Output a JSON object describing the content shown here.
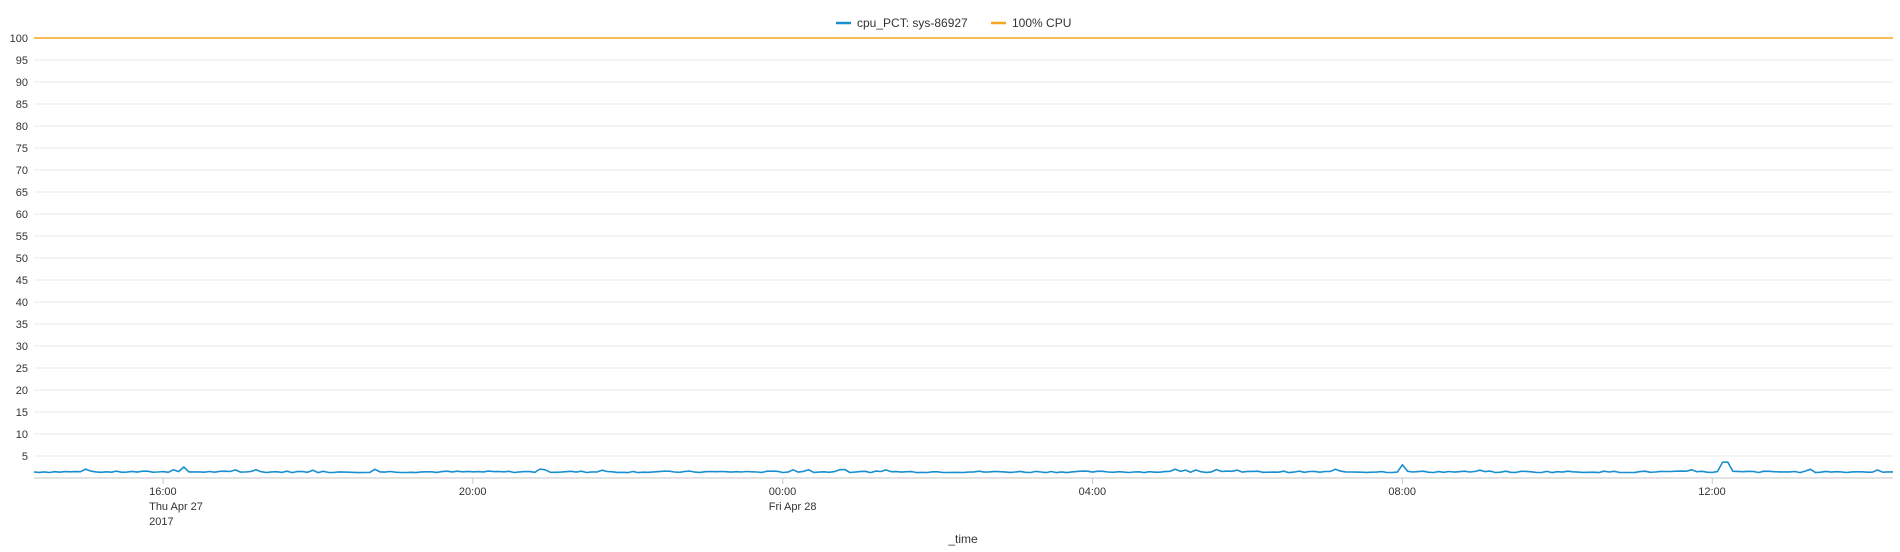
{
  "chart_data": {
    "type": "line",
    "title": "",
    "xlabel": "_time",
    "ylabel": "",
    "ylim": [
      0,
      100
    ],
    "y_ticks": [
      5,
      10,
      15,
      20,
      25,
      30,
      35,
      40,
      45,
      50,
      55,
      60,
      65,
      70,
      75,
      80,
      85,
      90,
      95,
      100
    ],
    "x_range": [
      "2017-04-27T14:20",
      "2017-04-28T14:20"
    ],
    "x_ticks": [
      {
        "time": "2017-04-27T16:00",
        "lines": [
          "16:00",
          "Thu Apr 27",
          "2017"
        ]
      },
      {
        "time": "2017-04-27T20:00",
        "lines": [
          "20:00"
        ]
      },
      {
        "time": "2017-04-28T00:00",
        "lines": [
          "00:00",
          "Fri Apr 28"
        ]
      },
      {
        "time": "2017-04-28T04:00",
        "lines": [
          "04:00"
        ]
      },
      {
        "time": "2017-04-28T08:00",
        "lines": [
          "08:00"
        ]
      },
      {
        "time": "2017-04-28T12:00",
        "lines": [
          "12:00"
        ]
      }
    ],
    "grid": true,
    "legend_position": "top",
    "series": [
      {
        "name": "cpu_PCT: sys-86927",
        "color": "#1a8fd0",
        "baseline": 1.4,
        "spikes": [
          {
            "time": "2017-04-27T16:15",
            "value": 2.5
          },
          {
            "time": "2017-04-28T08:00",
            "value": 3.0
          },
          {
            "time": "2017-04-28T12:10",
            "value": 3.6
          }
        ]
      },
      {
        "name": "100% CPU",
        "color": "#f5a623",
        "constant": 100
      }
    ]
  }
}
